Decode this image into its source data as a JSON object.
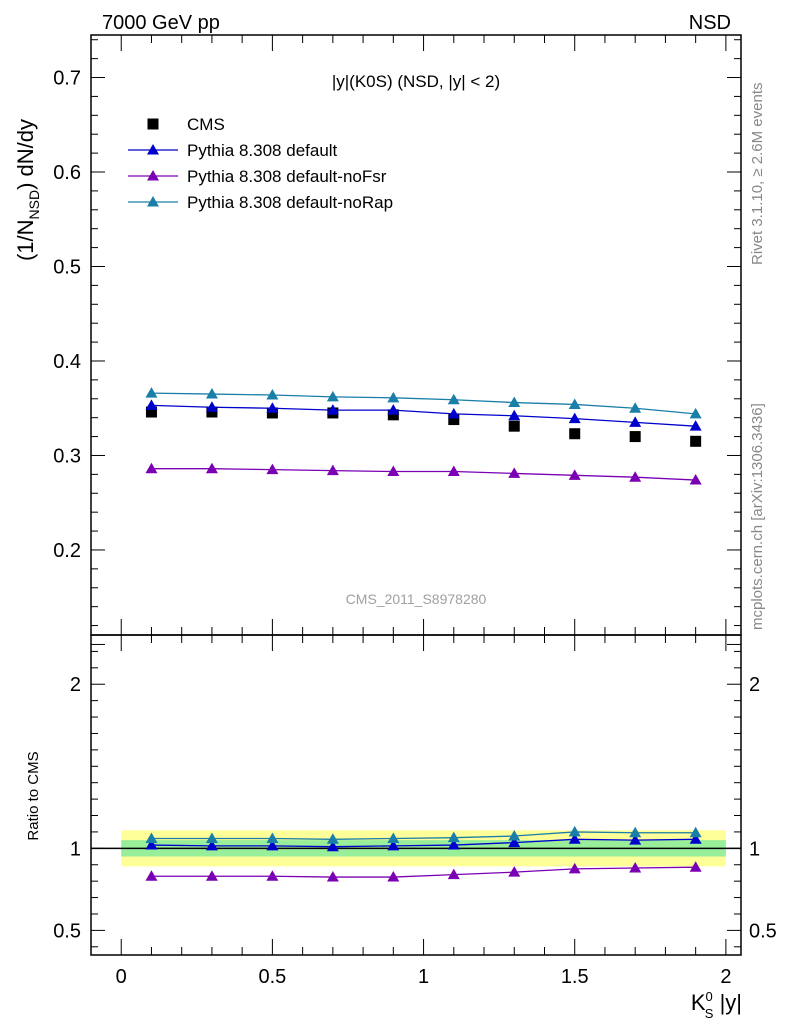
{
  "header": {
    "left": "7000 GeV pp",
    "right": "NSD"
  },
  "side_notes": {
    "top": "Rivet 3.1.10, ≥ 2.6M events",
    "bottom": "mcplots.cern.ch [arXiv:1306.3436]"
  },
  "watermark": "CMS_2011_S8978280",
  "chart_data": [
    {
      "type": "scatter",
      "title": "|y|(K0S) (NSD, |y| < 2)",
      "ylabel": "(1/N_NSD) dN/dy",
      "xlim": [
        -0.1,
        2.05
      ],
      "ylim": [
        0.11,
        0.745
      ],
      "yticks": [
        0.2,
        0.3,
        0.4,
        0.5,
        0.6,
        0.7
      ],
      "x": [
        0.1,
        0.3,
        0.5,
        0.7,
        0.9,
        1.1,
        1.3,
        1.5,
        1.7,
        1.9
      ],
      "legend_position": "top-left",
      "series": [
        {
          "name": "CMS",
          "marker": "square",
          "color": "#000000",
          "values": [
            0.346,
            0.346,
            0.345,
            0.345,
            0.343,
            0.338,
            0.331,
            0.323,
            0.32,
            0.315
          ]
        },
        {
          "name": "Pythia 8.308 default",
          "marker": "triangle",
          "color": "#0000cc",
          "values": [
            0.353,
            0.351,
            0.35,
            0.348,
            0.348,
            0.344,
            0.342,
            0.339,
            0.335,
            0.331
          ]
        },
        {
          "name": "Pythia 8.308 default-noFsr",
          "marker": "triangle",
          "color": "#7b00b4",
          "values": [
            0.286,
            0.286,
            0.285,
            0.284,
            0.283,
            0.283,
            0.281,
            0.279,
            0.277,
            0.274
          ]
        },
        {
          "name": "Pythia 8.308 default-noRap",
          "marker": "triangle",
          "color": "#1a7fa8",
          "values": [
            0.366,
            0.365,
            0.364,
            0.362,
            0.361,
            0.359,
            0.356,
            0.354,
            0.35,
            0.344
          ]
        }
      ]
    },
    {
      "type": "scatter",
      "ylabel": "Ratio to CMS",
      "xlabel": "K_S^0 |y|",
      "xlim": [
        -0.1,
        2.05
      ],
      "ylim": [
        0.35,
        2.3
      ],
      "yticks": [
        0.5,
        1,
        2
      ],
      "xticks": [
        0,
        0.5,
        1,
        1.5,
        2
      ],
      "band_inner": [
        0.95,
        1.05
      ],
      "band_outer": [
        0.89,
        1.11
      ],
      "x": [
        0.1,
        0.3,
        0.5,
        0.7,
        0.9,
        1.1,
        1.3,
        1.5,
        1.7,
        1.9
      ],
      "series": [
        {
          "name": "Pythia 8.308 default",
          "color": "#0000cc",
          "values": [
            1.02,
            1.015,
            1.015,
            1.01,
            1.015,
            1.02,
            1.035,
            1.055,
            1.05,
            1.055
          ]
        },
        {
          "name": "Pythia 8.308 default-noFsr",
          "color": "#7b00b4",
          "values": [
            0.83,
            0.83,
            0.83,
            0.825,
            0.825,
            0.84,
            0.855,
            0.875,
            0.88,
            0.885
          ]
        },
        {
          "name": "Pythia 8.308 default-noRap",
          "color": "#1a7fa8",
          "values": [
            1.06,
            1.06,
            1.06,
            1.055,
            1.06,
            1.065,
            1.075,
            1.1,
            1.095,
            1.095
          ]
        }
      ]
    }
  ]
}
